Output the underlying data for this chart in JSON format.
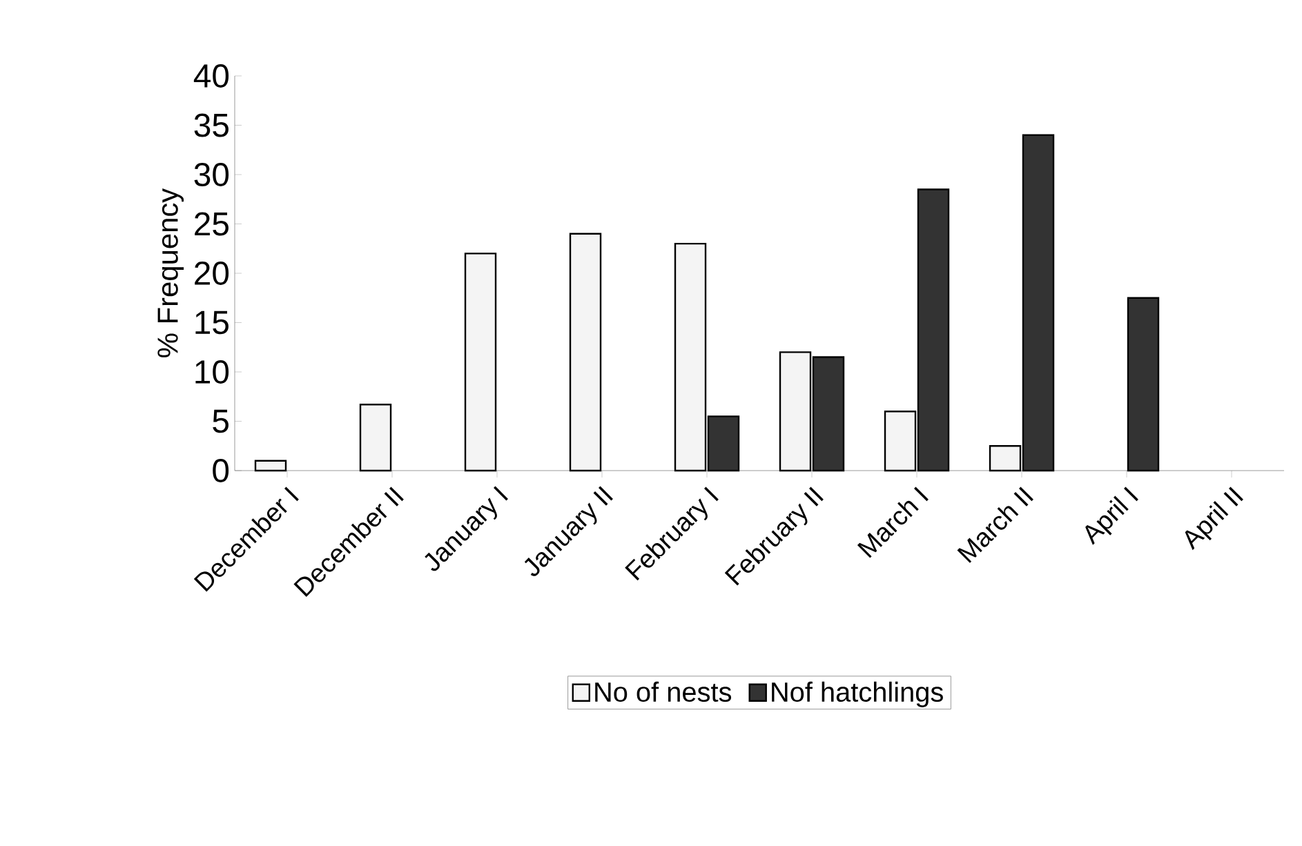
{
  "chart_data": {
    "type": "bar",
    "ylabel": "% Frequency",
    "categories": [
      "December I",
      "December II",
      "January I",
      "January II",
      "February I",
      "February II",
      "March I",
      "March II",
      "April I",
      "April II"
    ],
    "series": [
      {
        "name": "No of nests",
        "color": "#f4f4f4",
        "values": [
          1,
          6.7,
          22,
          24,
          23,
          12,
          6,
          2.5,
          null,
          null
        ]
      },
      {
        "name": "Nof hatchlings",
        "color": "#333333",
        "values": [
          null,
          null,
          null,
          null,
          5.5,
          11.5,
          28.5,
          34,
          17.5,
          null
        ]
      }
    ],
    "ylim": [
      0,
      40
    ],
    "yticks": [
      0,
      5,
      10,
      15,
      20,
      25,
      30,
      35,
      40
    ],
    "grid": false,
    "legend": "bottom"
  }
}
